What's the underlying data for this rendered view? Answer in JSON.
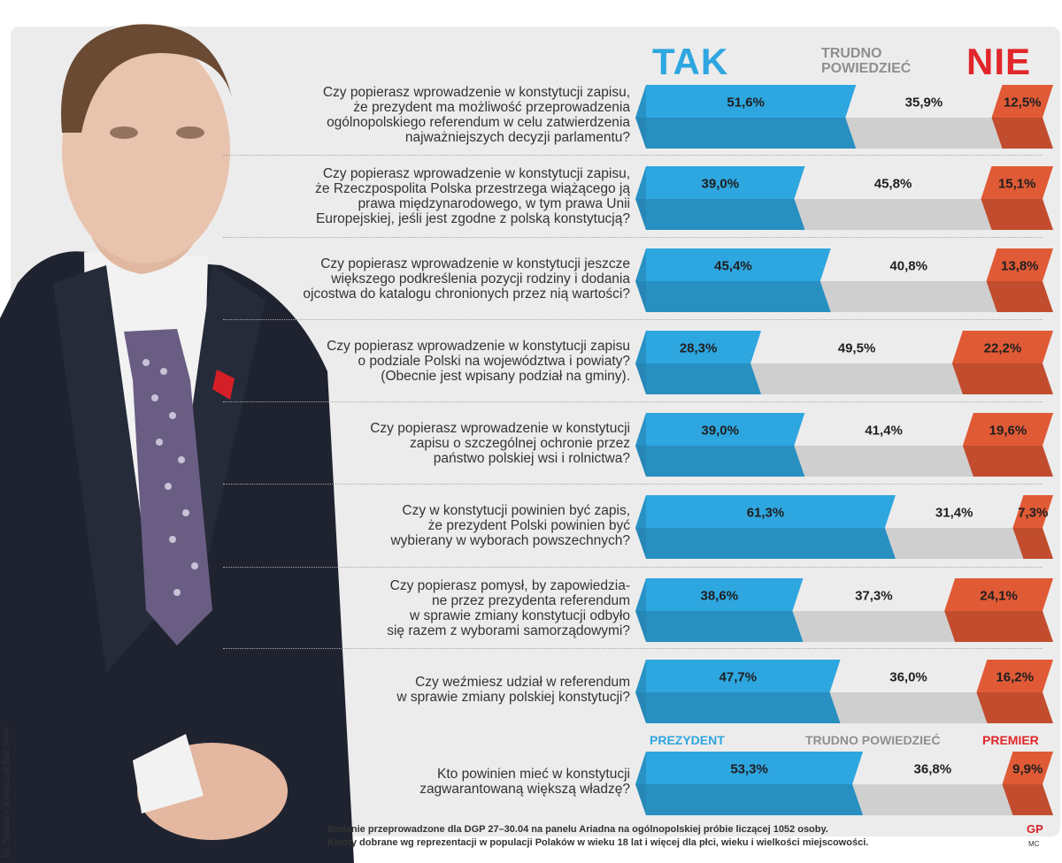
{
  "headers": {
    "yes": "TAK",
    "unsure": "TRUDNO POWIEDZIEĆ",
    "no": "NIE"
  },
  "special_headers": {
    "yes": "PREZYDENT",
    "unsure": "TRUDNO POWIEDZIEĆ",
    "no": "PREMIER"
  },
  "photo_credit": "fot. Stanisław Kowalczuk/East News",
  "footnote_lines": [
    "Badanie przeprowadzone dla DGP 27–30.04 na panelu Ariadna na ogólnopolskiej próbie liczącej 1052 osoby.",
    "Kwoty dobrane wg reprezentacji w populacji Polaków w wieku 18 lat i więcej dla płci, wieku i wielkości miejscowości."
  ],
  "logo": "GP",
  "logo_mark": "MC",
  "colors": {
    "yes": "#2ea6e0",
    "unsure": "#e4e4e4",
    "no": "#e05a36",
    "yes_headline": "#2ea6e0",
    "no_headline": "#e0262a"
  },
  "chart_data": {
    "type": "bar",
    "orientation": "horizontal",
    "stacked": true,
    "series_names": [
      "TAK",
      "TRUDNO POWIEDZIEĆ",
      "NIE"
    ],
    "unit": "%",
    "questions": [
      {
        "lines": [
          "Czy popierasz wprowadzenie w konstytucji zapisu,",
          "że prezydent ma możliwość przeprowadzenia",
          "ogólnopolskiego referendum w celu zatwierdzenia",
          "najważniejszych decyzji parlamentu?"
        ],
        "values": [
          51.6,
          35.9,
          12.5
        ],
        "labels": [
          "51,6%",
          "35,9%",
          "12,5%"
        ]
      },
      {
        "lines": [
          "Czy popierasz wprowadzenie w konstytucji zapisu,",
          "że Rzeczpospolita Polska przestrzega wiążącego ją",
          "prawa międzynarodowego, w tym prawa Unii",
          "Europejskiej, jeśli jest zgodne z polską konstytucją?"
        ],
        "values": [
          39.0,
          45.8,
          15.1
        ],
        "labels": [
          "39,0%",
          "45,8%",
          "15,1%"
        ]
      },
      {
        "lines": [
          "Czy popierasz wprowadzenie w konstytucji jeszcze",
          "większego podkreślenia pozycji rodziny i dodania",
          "ojcostwa do katalogu chronionych przez nią wartości?"
        ],
        "values": [
          45.4,
          40.8,
          13.8
        ],
        "labels": [
          "45,4%",
          "40,8%",
          "13,8%"
        ]
      },
      {
        "lines": [
          "Czy popierasz wprowadzenie w konstytucji zapisu",
          "o podziale Polski na województwa i powiaty?",
          "(Obecnie jest wpisany podział na gminy)."
        ],
        "values": [
          28.3,
          49.5,
          22.2
        ],
        "labels": [
          "28,3%",
          "49,5%",
          "22,2%"
        ]
      },
      {
        "lines": [
          "Czy popierasz wprowadzenie w konstytucji",
          "zapisu o szczególnej ochronie przez",
          "państwo polskiej wsi i rolnictwa?"
        ],
        "values": [
          39.0,
          41.4,
          19.6
        ],
        "labels": [
          "39,0%",
          "41,4%",
          "19,6%"
        ]
      },
      {
        "lines": [
          "Czy w konstytucji powinien być zapis,",
          "że prezydent Polski powinien być",
          "wybierany w wyborach powszechnych?"
        ],
        "values": [
          61.3,
          31.4,
          7.3
        ],
        "labels": [
          "61,3%",
          "31,4%",
          "7,3%"
        ]
      },
      {
        "lines": [
          "Czy popierasz pomysł, by zapowiedzia-",
          "ne przez prezydenta referendum",
          "w sprawie zmiany konstytucji odbyło",
          "się razem z wyborami samorządowymi?"
        ],
        "values": [
          38.6,
          37.3,
          24.1
        ],
        "labels": [
          "38,6%",
          "37,3%",
          "24,1%"
        ]
      },
      {
        "lines": [
          "Czy weźmiesz udział w referendum",
          "w sprawie zmiany polskiej konstytucji?"
        ],
        "values": [
          47.7,
          36.0,
          16.2
        ],
        "labels": [
          "47,7%",
          "36,0%",
          "16,2%"
        ]
      },
      {
        "lines": [
          "Kto powinien mieć w konstytucji",
          "zagwarantowaną większą władzę?"
        ],
        "values": [
          53.3,
          36.8,
          9.9
        ],
        "labels": [
          "53,3%",
          "36,8%",
          "9,9%"
        ],
        "series_names": [
          "PREZYDENT",
          "TRUDNO POWIEDZIEĆ",
          "PREMIER"
        ]
      }
    ]
  }
}
